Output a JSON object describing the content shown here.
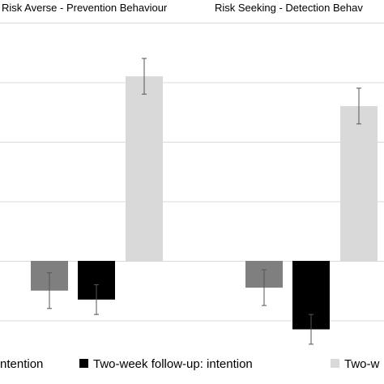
{
  "chart_data": {
    "type": "bar",
    "categories": [
      "Risk Averse -  Prevention Behaviour",
      "Risk Seeking - Detection Behav"
    ],
    "series": [
      {
        "name": "ntention",
        "color": "#7f7f7f",
        "values": [
          -0.5,
          -0.45
        ],
        "errors": [
          0.3,
          0.3
        ]
      },
      {
        "name": "Two-week follow-up: intention",
        "color": "#000000",
        "values": [
          -0.65,
          -1.15
        ],
        "errors": [
          0.25,
          0.25
        ]
      },
      {
        "name": "Two-w",
        "color": "#d9d9d9",
        "values": [
          3.1,
          2.6
        ],
        "errors": [
          0.3,
          0.3
        ]
      }
    ],
    "ylim": [
      -1.5,
      4
    ],
    "y_gridlines": [
      -1,
      0,
      1,
      2,
      3,
      4
    ],
    "grid": true,
    "legend": "bottom",
    "has_error_bars": true
  }
}
